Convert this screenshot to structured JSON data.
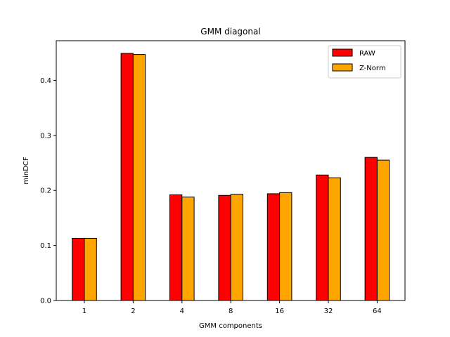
{
  "chart_data": {
    "type": "bar",
    "title": "GMM diagonal",
    "xlabel": "GMM components",
    "ylabel": "minDCF",
    "categories": [
      "1",
      "2",
      "4",
      "8",
      "16",
      "32",
      "64"
    ],
    "series": [
      {
        "name": "RAW",
        "color": "#ff0000",
        "values": [
          0.113,
          0.449,
          0.192,
          0.191,
          0.194,
          0.228,
          0.26
        ]
      },
      {
        "name": "Z-Norm",
        "color": "#ffa500",
        "values": [
          0.113,
          0.447,
          0.188,
          0.193,
          0.196,
          0.223,
          0.255
        ]
      }
    ],
    "ylim": [
      0,
      0.472
    ],
    "yticks": [
      0.0,
      0.1,
      0.2,
      0.3,
      0.4
    ],
    "ytick_labels": [
      "0.0",
      "0.1",
      "0.2",
      "0.3",
      "0.4"
    ],
    "grid": false,
    "legend_position": "top-right"
  }
}
